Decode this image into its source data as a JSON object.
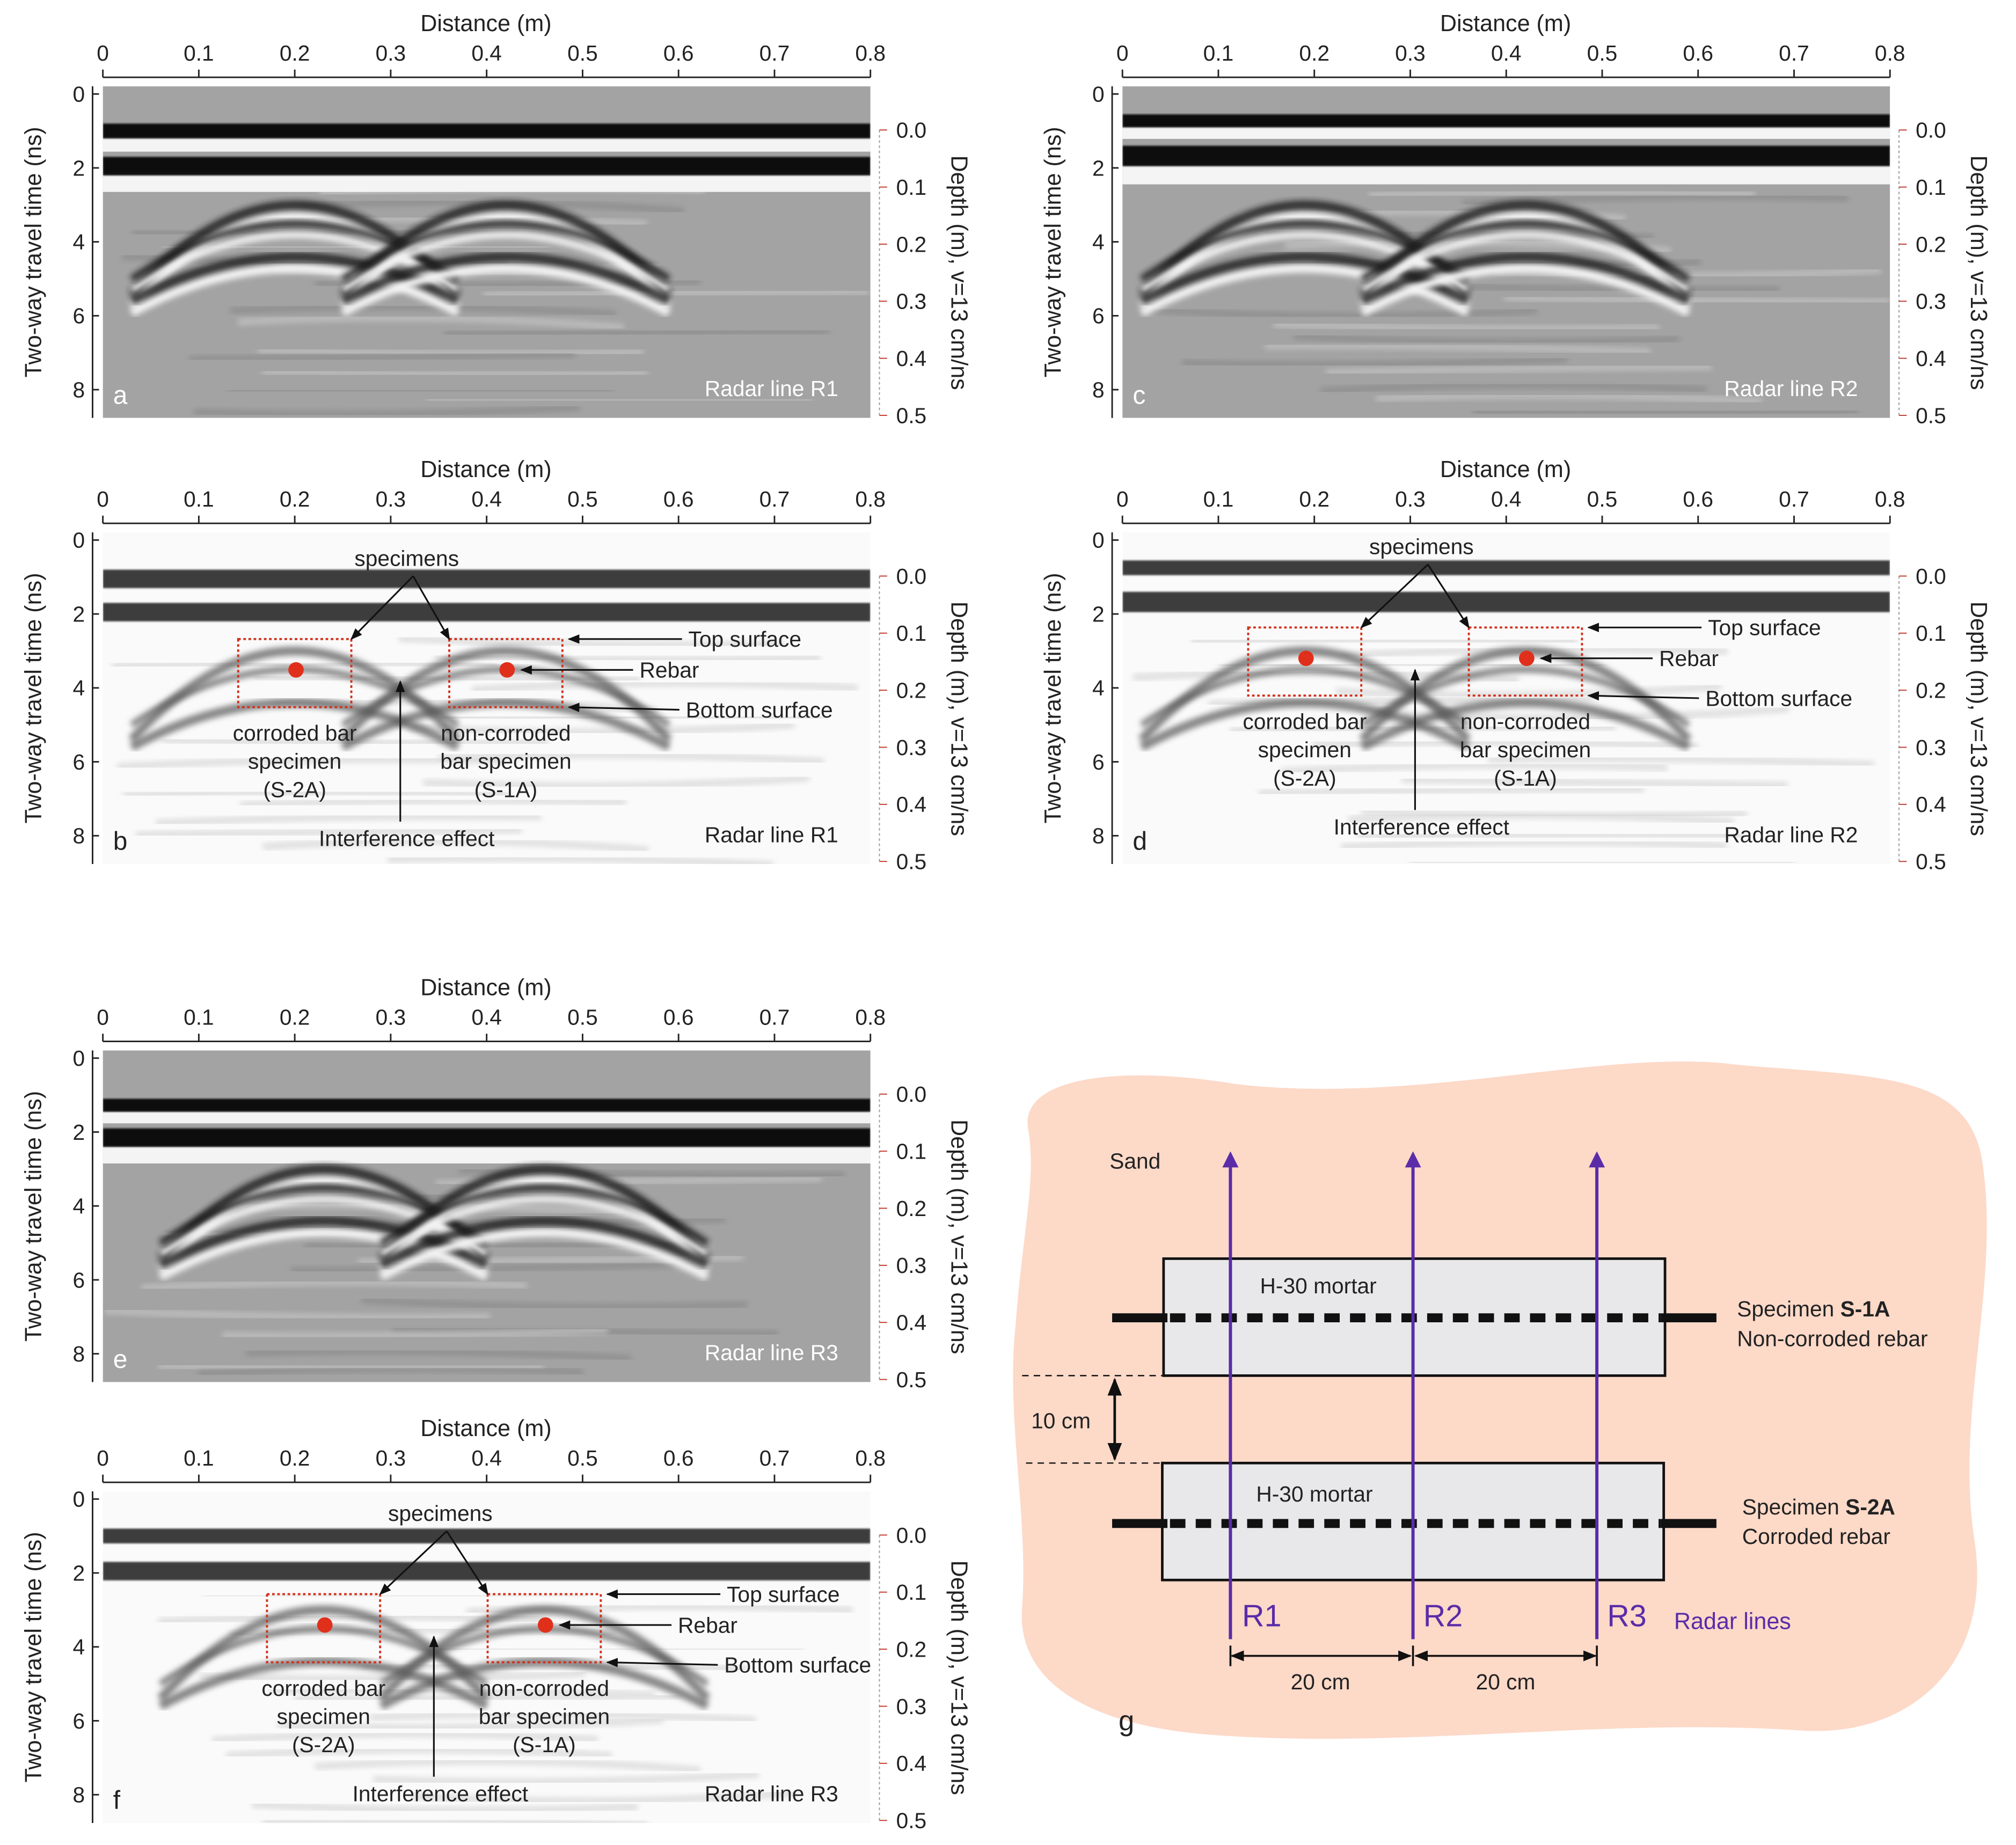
{
  "chart_data": {
    "type": "heatmap",
    "description_type": "radargram",
    "x_axis": {
      "title": "Distance (m)",
      "range": [
        0,
        0.8
      ],
      "ticks": [
        0,
        0.1,
        0.2,
        0.3,
        0.4,
        0.5,
        0.6,
        0.7,
        0.8
      ],
      "tick_labels": [
        "0",
        "0.1",
        "0.2",
        "0.3",
        "0.4",
        "0.5",
        "0.6",
        "0.7",
        "0.8"
      ]
    },
    "y_axis": {
      "title": "Two-way travel time (ns)",
      "range": [
        0,
        8.8
      ],
      "ticks": [
        0,
        2,
        4,
        6,
        8
      ],
      "tick_labels": [
        "0",
        "2",
        "4",
        "6",
        "8"
      ]
    },
    "y2_axis": {
      "title": "Depth (m), v=13 cm/ns",
      "range": [
        0,
        0.5
      ],
      "ticks": [
        0,
        0.1,
        0.2,
        0.3,
        0.4,
        0.5
      ],
      "tick_labels": [
        "0.0",
        "0.1",
        "0.2",
        "0.3",
        "0.4",
        "0.5"
      ]
    },
    "annotations": {
      "specimens": "specimens",
      "top_surface": "Top surface",
      "rebar": "Rebar",
      "bottom_surface": "Bottom surface",
      "corroded": [
        "corroded bar",
        "specimen",
        "(S-2A)"
      ],
      "noncorroded": [
        "non-corroded",
        "bar specimen",
        "(S-1A)"
      ],
      "interference": "Interference effect"
    },
    "panels": [
      {
        "letter": "a",
        "radar_line": "Radar line R1",
        "style": "raw",
        "bands": [
          [
            0.8,
            1.2
          ],
          [
            1.7,
            2.2
          ]
        ],
        "specimen_x": [
          0.2,
          0.42
        ]
      },
      {
        "letter": "b",
        "radar_line": "Radar line R1",
        "style": "annotated",
        "bands": [
          [
            0.8,
            1.3
          ],
          [
            1.7,
            2.2
          ]
        ],
        "specimen_x": [
          0.2,
          0.42
        ]
      },
      {
        "letter": "c",
        "radar_line": "Radar line R2",
        "style": "raw",
        "bands": [
          [
            0.55,
            0.9
          ],
          [
            1.4,
            1.95
          ]
        ],
        "specimen_x": [
          0.19,
          0.42
        ]
      },
      {
        "letter": "d",
        "radar_line": "Radar line R2",
        "style": "annotated",
        "bands": [
          [
            0.55,
            0.95
          ],
          [
            1.4,
            1.95
          ]
        ],
        "specimen_x": [
          0.19,
          0.42
        ]
      },
      {
        "letter": "e",
        "radar_line": "Radar line R3",
        "style": "raw",
        "bands": [
          [
            1.1,
            1.45
          ],
          [
            1.9,
            2.4
          ]
        ],
        "specimen_x": [
          0.23,
          0.46
        ]
      },
      {
        "letter": "f",
        "radar_line": "Radar line R3",
        "style": "annotated",
        "bands": [
          [
            0.8,
            1.2
          ],
          [
            1.7,
            2.2
          ]
        ],
        "specimen_x": [
          0.23,
          0.46
        ]
      }
    ],
    "reflection_times_ns": {
      "top_surface": 3.0,
      "rebar": 3.5,
      "bottom_surface": 4.4
    }
  },
  "schematic": {
    "letter": "g",
    "sand": "Sand",
    "mortar": "H-30 mortar",
    "specimen_1": {
      "prefix": "Specimen ",
      "id": "S-1A",
      "desc": "Non-corroded rebar"
    },
    "specimen_2": {
      "prefix": "Specimen ",
      "id": "S-2A",
      "desc": "Corroded rebar"
    },
    "gap": "10 cm",
    "spacing": "20 cm",
    "radar_lines": [
      "R1",
      "R2",
      "R3"
    ],
    "radar_lines_label": "Radar lines",
    "colors": {
      "sand": "#fdd9c8",
      "mortar": "#e8e8ea",
      "radar": "#5a2ca8"
    }
  }
}
